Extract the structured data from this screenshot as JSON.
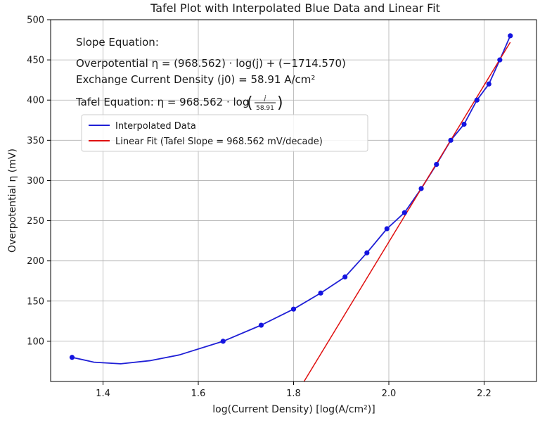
{
  "chart_data": {
    "type": "line",
    "title": "Tafel Plot with Interpolated Blue Data and Linear Fit",
    "xlabel": "log(Current Density) [log(A/cm²)]",
    "ylabel": "Overpotential η (mV)",
    "xlim": [
      1.29,
      2.31
    ],
    "ylim": [
      50,
      500
    ],
    "xticks": [
      1.4,
      1.6,
      1.8,
      2.0,
      2.2
    ],
    "xtick_labels": [
      "1.4",
      "1.6",
      "1.8",
      "2.0",
      "2.2"
    ],
    "yticks": [
      100,
      150,
      200,
      250,
      300,
      350,
      400,
      450,
      500
    ],
    "ytick_labels": [
      "100",
      "150",
      "200",
      "250",
      "300",
      "350",
      "400",
      "450",
      "500"
    ],
    "grid": true,
    "legend_position": "upper-left",
    "series": [
      {
        "name": "Interpolated Data",
        "color": "#1f1fd6",
        "x": [
          1.335,
          1.381,
          1.437,
          1.5,
          1.56,
          1.652,
          1.732,
          1.8,
          1.857,
          1.908,
          1.954,
          1.996,
          2.033,
          2.068,
          2.1,
          2.13,
          2.158,
          2.185,
          2.21,
          2.233,
          2.255
        ],
        "y": [
          80,
          74,
          72,
          76,
          83,
          100,
          120,
          140,
          160,
          180,
          210,
          240,
          260,
          290,
          320,
          350,
          370,
          400,
          420,
          450,
          480
        ]
      },
      {
        "name": "Linear Fit (Tafel Slope = 968.562 mV/decade)",
        "color": "#e01010",
        "x": [
          1.82,
          2.255
        ],
        "y": [
          48,
          472
        ]
      }
    ],
    "markers": {
      "color": "#1414e0",
      "x": [
        1.335,
        1.652,
        1.732,
        1.8,
        1.857,
        1.908,
        1.954,
        1.996,
        2.033,
        2.068,
        2.1,
        2.13,
        2.158,
        2.185,
        2.21,
        2.233,
        2.255
      ],
      "y": [
        80,
        100,
        120,
        140,
        160,
        180,
        210,
        240,
        260,
        290,
        320,
        350,
        370,
        400,
        420,
        450,
        480
      ]
    },
    "annotations": {
      "slope_heading": "Slope Equation:",
      "overpotential_eq": "Overpotential η = (968.562) · log(j) + (−1714.570)",
      "exchange_current": "Exchange Current Density (j0) = 58.91 A/cm²",
      "tafel_prefix": "Tafel Equation: η = 968.562 · log",
      "tafel_num": "j",
      "tafel_den": "58.91"
    }
  }
}
